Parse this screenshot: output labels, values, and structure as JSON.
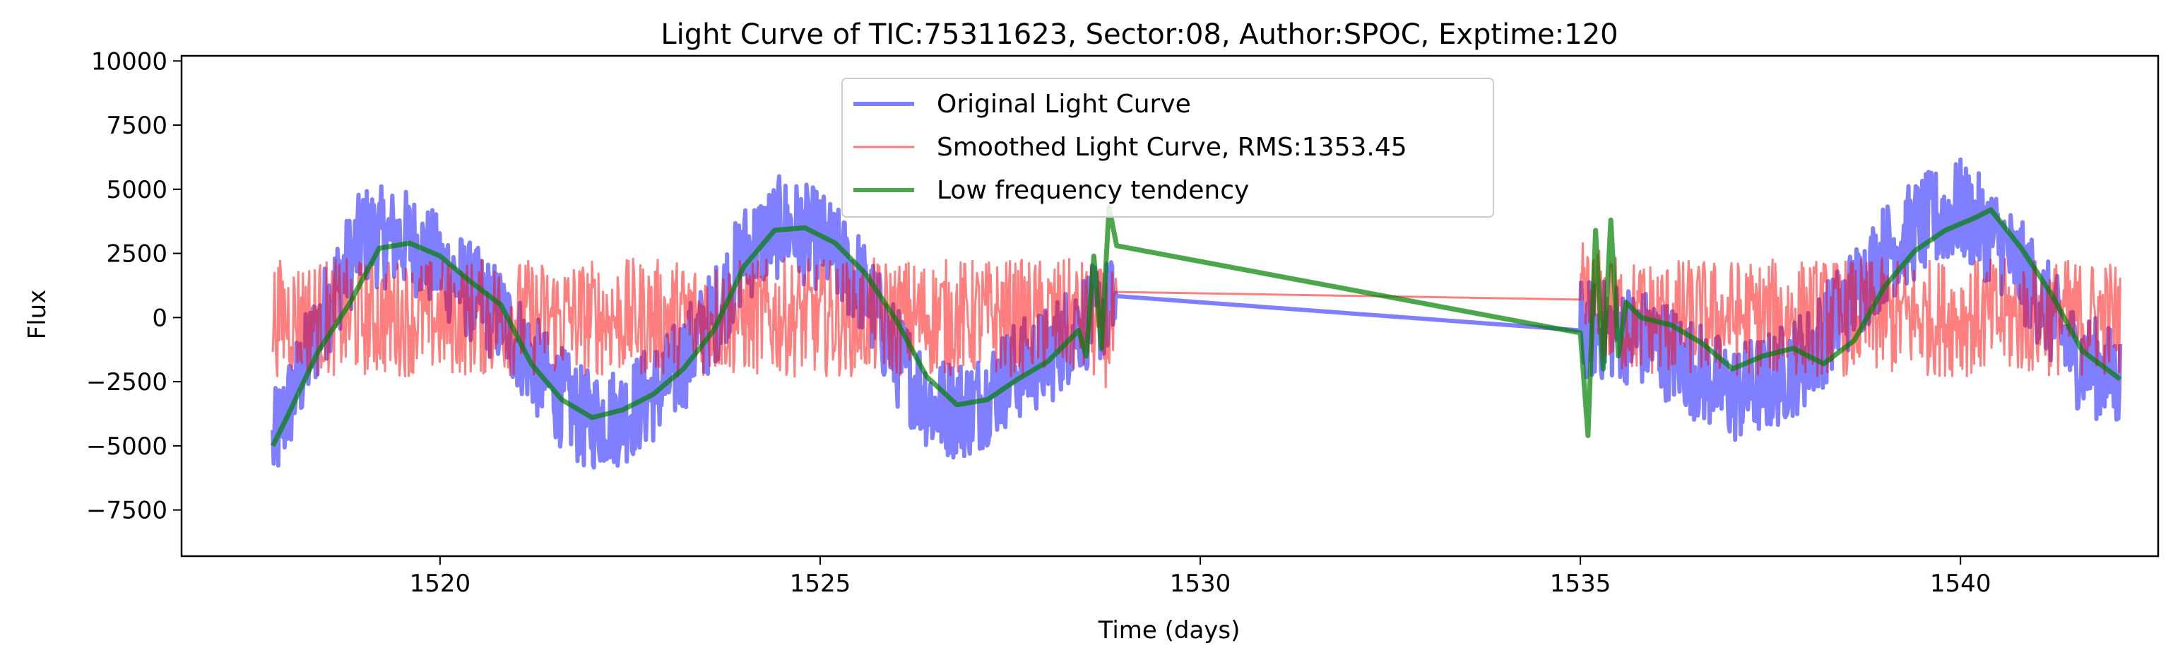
{
  "chart_data": {
    "type": "line",
    "title": "Light Curve of TIC:75311623, Sector:08, Author:SPOC, Exptime:120",
    "xlabel": "Time (days)",
    "ylabel": "Flux",
    "xlim": [
      1516.6,
      1542.6
    ],
    "ylim": [
      -9300,
      10200
    ],
    "xticks": [
      1520,
      1525,
      1530,
      1535,
      1540
    ],
    "xtick_labels": [
      "1520",
      "1525",
      "1530",
      "1535",
      "1540"
    ],
    "yticks": [
      -7500,
      -5000,
      -2500,
      0,
      2500,
      5000,
      7500,
      10000
    ],
    "ytick_labels": [
      "−7500",
      "−5000",
      "−2500",
      "0",
      "2500",
      "5000",
      "7500",
      "10000"
    ],
    "grid": false,
    "legend_position": "top-center",
    "gap": [
      1528.9,
      1535.0
    ],
    "series": [
      {
        "name": "Original Light Curve",
        "color": "#0000ff",
        "opacity": 0.5,
        "trend_points": [
          [
            1517.8,
            -5000
          ],
          [
            1518.2,
            -2000
          ],
          [
            1518.6,
            1000
          ],
          [
            1519.0,
            3200
          ],
          [
            1519.6,
            3000
          ],
          [
            1520.2,
            1500
          ],
          [
            1520.8,
            0
          ],
          [
            1521.4,
            -2500
          ],
          [
            1521.9,
            -4000
          ],
          [
            1522.4,
            -3800
          ],
          [
            1523.0,
            -2500
          ],
          [
            1523.6,
            0
          ],
          [
            1524.0,
            2500
          ],
          [
            1524.5,
            3600
          ],
          [
            1525.0,
            3000
          ],
          [
            1525.5,
            1500
          ],
          [
            1526.0,
            -1500
          ],
          [
            1526.5,
            -3500
          ],
          [
            1527.0,
            -3500
          ],
          [
            1527.5,
            -2200
          ],
          [
            1528.0,
            -1500
          ],
          [
            1528.4,
            -200
          ],
          [
            1528.9,
            500
          ],
          [
            1535.0,
            -500
          ],
          [
            1535.5,
            -500
          ],
          [
            1536.0,
            -1000
          ],
          [
            1536.5,
            -2000
          ],
          [
            1537.0,
            -3000
          ],
          [
            1537.5,
            -2500
          ],
          [
            1538.0,
            -1500
          ],
          [
            1538.5,
            500
          ],
          [
            1539.0,
            2500
          ],
          [
            1539.5,
            3600
          ],
          [
            1540.0,
            4200
          ],
          [
            1540.5,
            3000
          ],
          [
            1541.0,
            1000
          ],
          [
            1541.5,
            -1500
          ],
          [
            1542.1,
            -2500
          ]
        ],
        "noise_amplitude": 2000
      },
      {
        "name": "Smoothed Light Curve, RMS:1353.45",
        "color": "#ff0000",
        "opacity": 0.5,
        "trend_points": [
          [
            1517.8,
            0
          ],
          [
            1528.4,
            0
          ],
          [
            1528.9,
            -600
          ],
          [
            1535.0,
            700
          ],
          [
            1535.6,
            0
          ],
          [
            1542.1,
            0
          ]
        ],
        "noise_amplitude": 2300
      },
      {
        "name": "Low frequency tendency",
        "color": "#008000",
        "opacity": 0.7,
        "points": [
          [
            1517.8,
            -5000
          ],
          [
            1518.0,
            -3800
          ],
          [
            1518.4,
            -1300
          ],
          [
            1518.8,
            500
          ],
          [
            1519.2,
            2700
          ],
          [
            1519.6,
            2900
          ],
          [
            1520.0,
            2400
          ],
          [
            1520.4,
            1400
          ],
          [
            1520.8,
            500
          ],
          [
            1521.2,
            -1800
          ],
          [
            1521.6,
            -3200
          ],
          [
            1522.0,
            -3900
          ],
          [
            1522.4,
            -3600
          ],
          [
            1522.8,
            -3000
          ],
          [
            1523.2,
            -2000
          ],
          [
            1523.6,
            -500
          ],
          [
            1524.0,
            2000
          ],
          [
            1524.4,
            3400
          ],
          [
            1524.8,
            3500
          ],
          [
            1525.2,
            2900
          ],
          [
            1525.6,
            1700
          ],
          [
            1526.0,
            -100
          ],
          [
            1526.4,
            -2300
          ],
          [
            1526.8,
            -3400
          ],
          [
            1527.2,
            -3200
          ],
          [
            1527.6,
            -2400
          ],
          [
            1528.0,
            -1700
          ],
          [
            1528.4,
            -500
          ],
          [
            1528.5,
            -1500
          ],
          [
            1528.6,
            2400
          ],
          [
            1528.7,
            -1200
          ],
          [
            1528.8,
            4300
          ],
          [
            1528.9,
            2800
          ],
          [
            1535.0,
            -600
          ],
          [
            1535.1,
            -4600
          ],
          [
            1535.2,
            3400
          ],
          [
            1535.3,
            -2000
          ],
          [
            1535.4,
            3800
          ],
          [
            1535.5,
            -1500
          ],
          [
            1535.6,
            600
          ],
          [
            1535.8,
            0
          ],
          [
            1536.2,
            -300
          ],
          [
            1536.6,
            -1000
          ],
          [
            1537.0,
            -2000
          ],
          [
            1537.4,
            -1500
          ],
          [
            1537.8,
            -1200
          ],
          [
            1538.2,
            -1800
          ],
          [
            1538.6,
            -900
          ],
          [
            1539.0,
            1200
          ],
          [
            1539.4,
            2600
          ],
          [
            1539.8,
            3400
          ],
          [
            1540.2,
            3900
          ],
          [
            1540.4,
            4200
          ],
          [
            1540.8,
            2700
          ],
          [
            1541.2,
            900
          ],
          [
            1541.6,
            -1300
          ],
          [
            1542.1,
            -2400
          ]
        ]
      }
    ]
  }
}
